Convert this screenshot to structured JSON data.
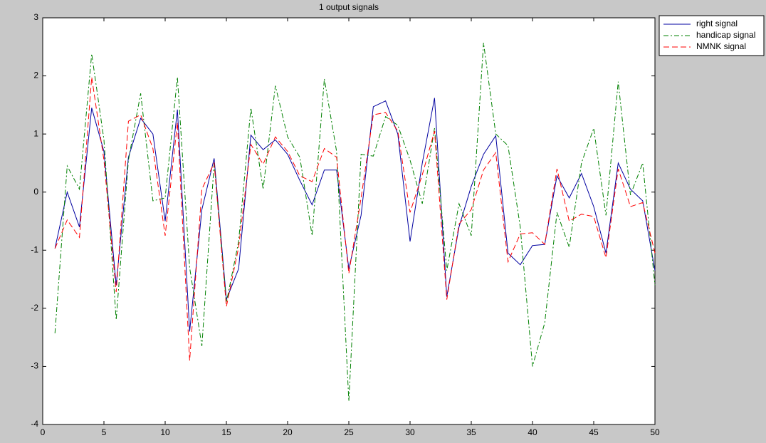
{
  "chart_data": {
    "type": "line",
    "title": "1 output signals",
    "x": [
      1,
      2,
      3,
      4,
      5,
      6,
      7,
      8,
      9,
      10,
      11,
      12,
      13,
      14,
      15,
      16,
      17,
      18,
      19,
      20,
      21,
      22,
      23,
      24,
      25,
      26,
      27,
      28,
      29,
      30,
      31,
      32,
      33,
      34,
      35,
      36,
      37,
      38,
      39,
      40,
      41,
      42,
      43,
      44,
      45,
      46,
      47,
      48,
      49,
      50
    ],
    "series": [
      {
        "name": "right signal",
        "color": "#0000a0",
        "linestyle": "solid",
        "values": [
          -0.97,
          0.0,
          -0.6,
          1.45,
          0.7,
          -1.6,
          0.6,
          1.27,
          1.0,
          -0.5,
          1.42,
          -2.4,
          -0.3,
          0.58,
          -1.85,
          -1.32,
          0.98,
          0.73,
          0.9,
          0.65,
          0.2,
          -0.22,
          0.38,
          0.38,
          -1.32,
          -0.4,
          1.47,
          1.57,
          1.0,
          -0.85,
          0.5,
          1.62,
          -1.8,
          -0.6,
          0.1,
          0.65,
          0.97,
          -1.05,
          -1.25,
          -0.92,
          -0.9,
          0.28,
          -0.1,
          0.32,
          -0.25,
          -1.05,
          0.5,
          0.05,
          -0.15,
          -1.35
        ]
      },
      {
        "name": "handicap signal",
        "color": "#008000",
        "linestyle": "dashdot",
        "values": [
          -2.43,
          0.45,
          0.05,
          2.38,
          0.9,
          -2.2,
          0.55,
          1.7,
          -0.15,
          -0.1,
          1.98,
          -1.3,
          -2.65,
          0.5,
          -1.9,
          -0.85,
          1.45,
          0.05,
          1.83,
          0.95,
          0.6,
          -0.75,
          1.95,
          0.7,
          -3.6,
          0.65,
          0.62,
          1.3,
          1.15,
          0.55,
          -0.2,
          1.1,
          -1.35,
          -0.2,
          -0.75,
          2.57,
          1.0,
          0.8,
          -0.6,
          -3.0,
          -2.25,
          -0.35,
          -0.95,
          0.5,
          1.1,
          -0.4,
          1.9,
          -0.05,
          0.5,
          -1.6
        ]
      },
      {
        "name": "NMNK signal",
        "color": "#ff0000",
        "linestyle": "dashed",
        "values": [
          -0.97,
          -0.48,
          -0.78,
          1.98,
          0.55,
          -1.72,
          1.22,
          1.33,
          0.75,
          -0.75,
          1.2,
          -2.9,
          0.05,
          0.5,
          -1.97,
          -0.95,
          0.82,
          0.48,
          0.95,
          0.7,
          0.28,
          0.18,
          0.75,
          0.6,
          -1.4,
          -0.1,
          1.33,
          1.37,
          1.05,
          -0.35,
          0.3,
          1.05,
          -1.85,
          -0.55,
          -0.3,
          0.38,
          0.68,
          -1.2,
          -0.72,
          -0.7,
          -0.9,
          0.4,
          -0.5,
          -0.38,
          -0.42,
          -1.13,
          0.4,
          -0.25,
          -0.18,
          -1.05
        ]
      }
    ],
    "xlim": [
      0,
      50
    ],
    "xticks": [
      0,
      5,
      10,
      15,
      20,
      25,
      30,
      35,
      40,
      45,
      50
    ],
    "ylim": [
      -4,
      3
    ],
    "yticks": [
      -4,
      -3,
      -2,
      -1,
      0,
      1,
      2,
      3
    ],
    "grid": false,
    "legend": "outside-top-right"
  }
}
